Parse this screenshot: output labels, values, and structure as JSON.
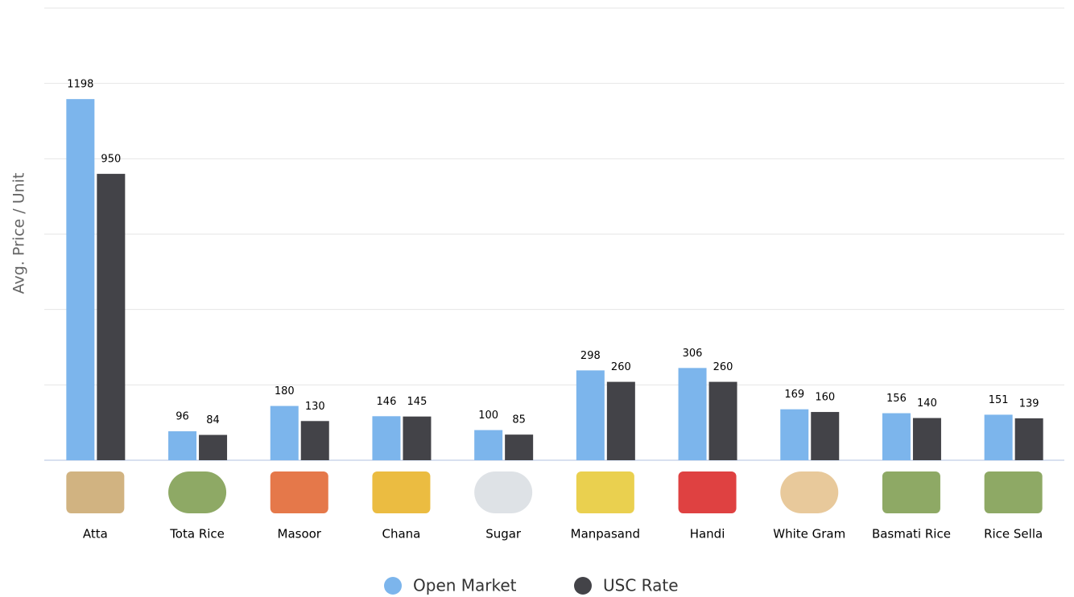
{
  "chart_data": {
    "type": "bar",
    "y_label": "Avg. Price / Unit",
    "categories": [
      "Atta",
      "Tota Rice",
      "Masoor",
      "Chana",
      "Sugar",
      "Manpasand",
      "Handi",
      "White Gram",
      "Basmati Rice",
      "Rice Sella"
    ],
    "series": [
      {
        "name": "Open Market",
        "color": "#7cb5ec",
        "values": [
          1198,
          96,
          180,
          146,
          100,
          298,
          306,
          169,
          156,
          151
        ]
      },
      {
        "name": "USC Rate",
        "color": "#434348",
        "values": [
          950,
          84,
          130,
          145,
          85,
          260,
          260,
          160,
          140,
          139
        ]
      }
    ],
    "ylim": [
      0,
      1500
    ],
    "yticks": [
      0,
      250,
      500,
      750,
      1000,
      1250,
      1500
    ],
    "grid": true
  }
}
